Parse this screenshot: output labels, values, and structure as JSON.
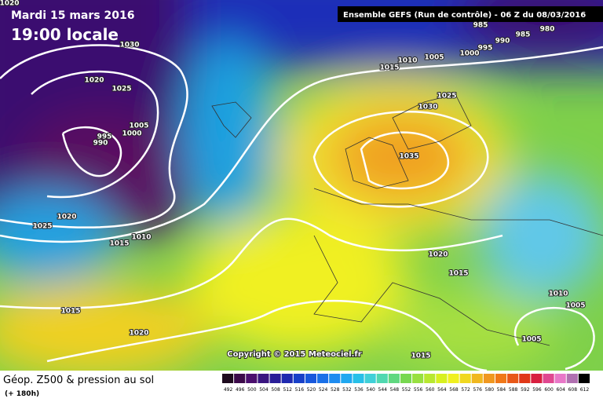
{
  "header": {
    "date": "Mardi 15 mars 2016",
    "time": "19:00 locale",
    "run": "Ensemble GEFS  (Run de contrôle)  - 06 Z du 08/03/2016"
  },
  "isobar_labels": [
    "1020",
    "985",
    "985",
    "980",
    "990",
    "995",
    "1000",
    "1005",
    "1010",
    "1015",
    "1030",
    "1020",
    "1025",
    "1005",
    "1000",
    "995",
    "990",
    "1025",
    "1030",
    "1035",
    "1020",
    "1025",
    "1010",
    "1015",
    "1020",
    "1015",
    "1010",
    "1005",
    "1015",
    "1020",
    "1005",
    "1015"
  ],
  "copyright": "Copyright © 2015 Meteociel.fr",
  "legend": {
    "title": "Géop. Z500 & pression au sol",
    "lead": "(+ 180h)",
    "scale": [
      492,
      496,
      500,
      504,
      508,
      512,
      516,
      520,
      524,
      528,
      532,
      536,
      540,
      544,
      548,
      552,
      556,
      560,
      564,
      568,
      572,
      576,
      580,
      584,
      588,
      592,
      596,
      600,
      604,
      608,
      612
    ]
  }
}
